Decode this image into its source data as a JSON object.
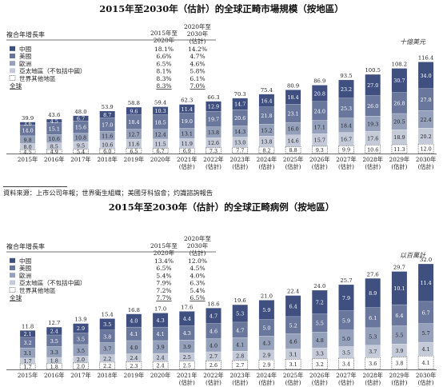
{
  "colors": {
    "china": "#3f4f80",
    "us": "#6a779c",
    "europe": "#95a0bb",
    "apac": "#c5cad9",
    "row": "#ffffff"
  },
  "source_note": "資料來源：上市公司年報；世界衛生組織；美國牙科協會；灼識諮詢報告",
  "chart_data": [
    {
      "type": "bar",
      "stacked": true,
      "title": "2015年至2030年（估計）的全球正畸市場規模（按地區）",
      "unit": "十億美元",
      "categories": [
        "2015年",
        "2016年",
        "2017年",
        "2018年",
        "2019年",
        "2020年",
        "2021年\n(估計)",
        "2022年\n(估計)",
        "2023年\n(估計)",
        "2024年\n(估計)",
        "2025年\n(估計)",
        "2026年\n(估計)",
        "2027年\n(估計)",
        "2028年\n(估計)",
        "2029年\n(估計)",
        "2030年\n(估計)"
      ],
      "totals": [
        "39.9",
        "43.6",
        "48.0",
        "53.9",
        "58.8",
        "59.4",
        "62.3",
        "66.3",
        "70.3",
        "75.4",
        "80.9",
        "86.9",
        "93.5",
        "100.5",
        "108.2",
        "116.4"
      ],
      "series": [
        {
          "name": "世界其他地區",
          "key": "row",
          "values": [
            4.5,
            4.9,
            5.4,
            6.0,
            6.5,
            6.7,
            6.9,
            7.3,
            7.7,
            8.2,
            8.8,
            9.3,
            9.9,
            10.6,
            11.3,
            12.0
          ]
        },
        {
          "name": "亞太地區（不包括中國）",
          "key": "apac",
          "values": [
            8.0,
            8.5,
            9.5,
            10.6,
            11.6,
            11.5,
            11.9,
            12.6,
            13.0,
            13.8,
            14.6,
            15.7,
            16.7,
            17.6,
            18.9,
            20.2
          ]
        },
        {
          "name": "歐洲",
          "key": "europe",
          "values": [
            9.8,
            10.6,
            10.8,
            11.6,
            12.7,
            12.4,
            13.1,
            13.8,
            14.3,
            15.2,
            16.0,
            17.1,
            18.4,
            19.3,
            20.5,
            22.4
          ]
        },
        {
          "name": "美國",
          "key": "us",
          "values": [
            14.0,
            15.1,
            15.6,
            17.0,
            18.4,
            18.5,
            19.0,
            19.7,
            20.6,
            21.8,
            23.1,
            24.0,
            25.3,
            26.0,
            26.8,
            27.8
          ]
        },
        {
          "name": "中國",
          "key": "china",
          "values": [
            3.6,
            4.5,
            6.7,
            8.7,
            9.6,
            10.3,
            11.4,
            12.9,
            14.7,
            16.4,
            18.4,
            20.8,
            23.2,
            27.0,
            30.7,
            34.0
          ]
        }
      ],
      "segment_labels": [
        [
          "4.5",
          "8.0",
          "9.8",
          "14.0",
          "3.6"
        ],
        [
          "4.9",
          "8.5",
          "10.6",
          "15.1",
          "4.5"
        ],
        [
          "5.4",
          "9.5",
          "10.8",
          "15.6",
          "6.7"
        ],
        [
          "6.0",
          "10.6",
          "11.6",
          "17.0",
          "8.7"
        ],
        [
          "6.5",
          "11.6",
          "12.7",
          "18.4",
          "9.6"
        ],
        [
          "6.7",
          "11.5",
          "12.4",
          "18.5",
          "10.3"
        ],
        [
          "6.9",
          "11.9",
          "13.1",
          "19.0",
          "11.4"
        ],
        [
          "7.3",
          "12.6",
          "13.8",
          "19.7",
          "12.9"
        ],
        [
          "7.7",
          "13.0",
          "14.3",
          "20.6",
          "14.7"
        ],
        [
          "8.2",
          "13.8",
          "15.2",
          "21.8",
          "16.4"
        ],
        [
          "8.8",
          "14.6",
          "16.0",
          "23.1",
          "18.4"
        ],
        [
          "9.3",
          "15.7",
          "17.1",
          "24.0",
          "20.8"
        ],
        [
          "9.9",
          "16.7",
          "18.4",
          "25.3",
          "23.2"
        ],
        [
          "10.6",
          "17.6",
          "19.3",
          "26.0",
          "27.0"
        ],
        [
          "11.3",
          "18.9",
          "20.5",
          "26.8",
          "30.7"
        ],
        [
          "12.0",
          "20.2",
          "22.4",
          "27.8",
          "34.0"
        ]
      ],
      "ylim": [
        0,
        120
      ],
      "legend": {
        "header_label": "複合年增長率",
        "col1": "2015年至\n2020年",
        "col2": "2020年至\n2030年\n(估計)",
        "rows": [
          {
            "name": "中國",
            "key": "china",
            "v1": "18.1%",
            "v2": "14.2%"
          },
          {
            "name": "美國",
            "key": "us",
            "v1": "6.6%",
            "v2": "4.7%"
          },
          {
            "name": "歐洲",
            "key": "europe",
            "v1": "6.5%",
            "v2": "4.6%"
          },
          {
            "name": "亞太地區（不包括中國）",
            "key": "apac",
            "v1": "8.1%",
            "v2": "5.8%"
          },
          {
            "name": "世界其他地區",
            "key": "row",
            "v1": "8.3%",
            "v2": "6.1%"
          },
          {
            "name": "全球",
            "key": null,
            "v1": "8.3%",
            "v2": "7.0%"
          }
        ]
      }
    },
    {
      "type": "bar",
      "stacked": true,
      "title": "2015年至2030年（估計）的全球正畸病例（按地區）",
      "unit": "以百萬計",
      "categories": [
        "2015年",
        "2016年",
        "2017年",
        "2018年",
        "2019年",
        "2020年",
        "2021年\n(估計)",
        "2022年\n(估計)",
        "2023年\n(估計)",
        "2024年\n(估計)",
        "2025年\n(估計)",
        "2026年\n(估計)",
        "2027年\n(估計)",
        "2028年\n(估計)",
        "2029年\n(估計)",
        "2030年\n(估計)"
      ],
      "totals": [
        "11.8",
        "12.7",
        "13.9",
        "15.4",
        "16.8",
        "17.0",
        "17.6",
        "18.6",
        "19.6",
        "21.0",
        "22.4",
        "24.0",
        "25.7",
        "27.6",
        "29.7",
        "32.0"
      ],
      "series": [
        {
          "name": "世界其他地區",
          "key": "row",
          "values": [
            1.7,
            1.8,
            2.0,
            2.2,
            2.3,
            2.4,
            2.5,
            2.6,
            2.7,
            2.9,
            3.1,
            3.2,
            3.4,
            3.6,
            3.8,
            4.1
          ]
        },
        {
          "name": "亞太地區（不包括中國）",
          "key": "apac",
          "values": [
            1.7,
            1.8,
            2.0,
            2.2,
            2.4,
            2.4,
            2.5,
            2.7,
            2.8,
            2.9,
            3.1,
            3.3,
            3.5,
            3.7,
            3.9,
            4.1
          ]
        },
        {
          "name": "歐洲",
          "key": "europe",
          "values": [
            3.1,
            3.3,
            3.5,
            3.7,
            4.0,
            3.9,
            3.9,
            4.0,
            4.1,
            4.3,
            4.6,
            4.8,
            5.0,
            5.3,
            5.5,
            5.7
          ]
        },
        {
          "name": "美國",
          "key": "us",
          "values": [
            3.2,
            3.5,
            3.5,
            3.8,
            4.1,
            4.1,
            4.3,
            4.6,
            4.7,
            5.0,
            5.2,
            5.5,
            5.9,
            6.1,
            6.4,
            6.7
          ]
        },
        {
          "name": "中國",
          "key": "china",
          "values": [
            2.1,
            2.4,
            2.9,
            3.5,
            4.0,
            4.3,
            4.4,
            4.7,
            5.3,
            5.9,
            6.4,
            7.2,
            7.9,
            8.9,
            10.1,
            11.4
          ]
        }
      ],
      "segment_labels": [
        [
          "1.7",
          "1.7",
          "3.1",
          "3.2",
          "2.1"
        ],
        [
          "1.8",
          "1.8",
          "3.3",
          "3.5",
          "2.4"
        ],
        [
          "2.0",
          "2.0",
          "3.5",
          "3.5",
          "2.9"
        ],
        [
          "2.2",
          "2.2",
          "3.7",
          "3.8",
          "3.5"
        ],
        [
          "2.3",
          "2.4",
          "4.0",
          "4.1",
          "4.0"
        ],
        [
          "2.4",
          "2.4",
          "3.9",
          "4.1",
          "4.3"
        ],
        [
          "2.5",
          "2.5",
          "3.9",
          "4.3",
          "4.4"
        ],
        [
          "2.6",
          "2.7",
          "4.0",
          "4.6",
          "4.7"
        ],
        [
          "2.7",
          "2.8",
          "4.1",
          "4.7",
          "5.3"
        ],
        [
          "2.9",
          "2.9",
          "4.3",
          "5.0",
          "5.9"
        ],
        [
          "3.1",
          "3.1",
          "4.6",
          "5.2",
          "6.4"
        ],
        [
          "3.2",
          "3.3",
          "4.8",
          "5.5",
          "7.2"
        ],
        [
          "3.4",
          "3.5",
          "5.0",
          "5.9",
          "7.9"
        ],
        [
          "3.6",
          "3.7",
          "5.3",
          "6.1",
          "8.9"
        ],
        [
          "3.8",
          "3.9",
          "5.5",
          "6.4",
          "10.1"
        ],
        [
          "4.1",
          "4.1",
          "5.7",
          "6.7",
          "11.4"
        ]
      ],
      "ylim": [
        0,
        33
      ],
      "legend": {
        "header_label": "複合年增長率",
        "col1": "2015年至\n2020年",
        "col2": "2020年至\n2030年\n(估計)",
        "rows": [
          {
            "name": "中國",
            "key": "china",
            "v1": "13.4%",
            "v2": "12.0%"
          },
          {
            "name": "美國",
            "key": "us",
            "v1": "6.5%",
            "v2": "4.5%"
          },
          {
            "name": "歐洲",
            "key": "europe",
            "v1": "5.4%",
            "v2": "4.0%"
          },
          {
            "name": "亞太地區（不包括中國）",
            "key": "apac",
            "v1": "7.9%",
            "v2": "6.3%"
          },
          {
            "name": "世界其他地區",
            "key": "row",
            "v1": "7.2%",
            "v2": "5.4%"
          },
          {
            "name": "全球",
            "key": null,
            "v1": "7.7%",
            "v2": "6.5%"
          }
        ]
      }
    }
  ]
}
